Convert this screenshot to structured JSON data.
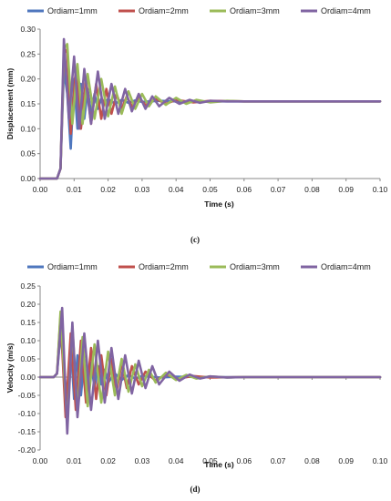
{
  "colors": {
    "s1": "#4f77be",
    "s2": "#c0504d",
    "s3": "#9bbb59",
    "s4": "#8064a2"
  },
  "chart_data": [
    {
      "type": "line",
      "caption": "(c)",
      "xlabel": "Time (s)",
      "ylabel": "Displacement (mm)",
      "xlim": [
        0,
        0.1
      ],
      "ylim": [
        0,
        0.3
      ],
      "xticks": [
        "0.00",
        "0.01",
        "0.02",
        "0.03",
        "0.04",
        "0.05",
        "0.06",
        "0.07",
        "0.08",
        "0.09",
        "0.10"
      ],
      "yticks": [
        "0.00",
        "0.05",
        "0.10",
        "0.15",
        "0.20",
        "0.25",
        "0.30"
      ],
      "grid": "none",
      "legend": "top",
      "series": [
        {
          "name": "Ordiam=1mm",
          "x": [
            0,
            0.004,
            0.005,
            0.006,
            0.007,
            0.008,
            0.009,
            0.01,
            0.011,
            0.012,
            0.013,
            0.014,
            0.015,
            0.016,
            0.017,
            0.018,
            0.019,
            0.02,
            0.022,
            0.024,
            0.026,
            0.028,
            0.03,
            0.035,
            0.04,
            0.05,
            0.06,
            0.07,
            0.1
          ],
          "y": [
            0,
            0,
            0,
            0.02,
            0.22,
            0.17,
            0.06,
            0.2,
            0.1,
            0.19,
            0.12,
            0.18,
            0.13,
            0.17,
            0.14,
            0.16,
            0.15,
            0.16,
            0.15,
            0.158,
            0.152,
            0.157,
            0.154,
            0.156,
            0.155,
            0.155,
            0.155,
            0.155,
            0.155
          ]
        },
        {
          "name": "Ordiam=2mm",
          "x": [
            0,
            0.004,
            0.005,
            0.006,
            0.007,
            0.008,
            0.009,
            0.0105,
            0.012,
            0.0135,
            0.015,
            0.0165,
            0.018,
            0.0195,
            0.021,
            0.0225,
            0.024,
            0.0255,
            0.027,
            0.029,
            0.031,
            0.034,
            0.037,
            0.04,
            0.045,
            0.05,
            0.06,
            0.07,
            0.1
          ],
          "y": [
            0,
            0,
            0,
            0.02,
            0.25,
            0.26,
            0.09,
            0.22,
            0.1,
            0.2,
            0.11,
            0.19,
            0.12,
            0.18,
            0.13,
            0.17,
            0.14,
            0.165,
            0.145,
            0.162,
            0.148,
            0.16,
            0.15,
            0.158,
            0.153,
            0.156,
            0.155,
            0.155,
            0.155
          ]
        },
        {
          "name": "Ordiam=3mm",
          "x": [
            0,
            0.004,
            0.005,
            0.006,
            0.007,
            0.008,
            0.0095,
            0.011,
            0.0125,
            0.014,
            0.016,
            0.018,
            0.02,
            0.022,
            0.024,
            0.026,
            0.028,
            0.03,
            0.032,
            0.034,
            0.037,
            0.04,
            0.043,
            0.046,
            0.05,
            0.055,
            0.06,
            0.07,
            0.1
          ],
          "y": [
            0,
            0,
            0,
            0.02,
            0.26,
            0.27,
            0.11,
            0.23,
            0.11,
            0.21,
            0.12,
            0.2,
            0.125,
            0.185,
            0.13,
            0.175,
            0.14,
            0.17,
            0.145,
            0.165,
            0.148,
            0.162,
            0.15,
            0.158,
            0.153,
            0.156,
            0.155,
            0.155,
            0.155
          ]
        },
        {
          "name": "Ordiam=4mm",
          "x": [
            0,
            0.004,
            0.005,
            0.006,
            0.007,
            0.0085,
            0.01,
            0.0115,
            0.013,
            0.015,
            0.017,
            0.019,
            0.021,
            0.023,
            0.025,
            0.027,
            0.029,
            0.031,
            0.033,
            0.035,
            0.038,
            0.041,
            0.044,
            0.047,
            0.05,
            0.055,
            0.06,
            0.07,
            0.1
          ],
          "y": [
            0,
            0,
            0,
            0.02,
            0.28,
            0.12,
            0.245,
            0.1,
            0.22,
            0.11,
            0.215,
            0.12,
            0.19,
            0.13,
            0.18,
            0.135,
            0.17,
            0.14,
            0.165,
            0.145,
            0.162,
            0.15,
            0.158,
            0.152,
            0.156,
            0.155,
            0.155,
            0.155,
            0.155
          ]
        }
      ]
    },
    {
      "type": "line",
      "caption": "(d)",
      "xlabel": "Time (s)",
      "ylabel": "Velocity (m/s)",
      "xlim": [
        0,
        0.1
      ],
      "ylim": [
        -0.2,
        0.25
      ],
      "xticks": [
        "0.00",
        "0.01",
        "0.02",
        "0.03",
        "0.04",
        "0.05",
        "0.06",
        "0.07",
        "0.08",
        "0.09",
        "0.10"
      ],
      "yticks": [
        "-0.20",
        "-0.15",
        "-0.10",
        "-0.05",
        "0.00",
        "0.05",
        "0.10",
        "0.15",
        "0.20",
        "0.25"
      ],
      "grid": "none",
      "legend": "top",
      "series": [
        {
          "name": "Ordiam=1mm",
          "x": [
            0,
            0.004,
            0.005,
            0.006,
            0.007,
            0.008,
            0.009,
            0.01,
            0.011,
            0.012,
            0.013,
            0.014,
            0.015,
            0.016,
            0.017,
            0.018,
            0.019,
            0.02,
            0.022,
            0.024,
            0.026,
            0.028,
            0.03,
            0.035,
            0.04,
            0.05,
            0.1
          ],
          "y": [
            0,
            0,
            0.01,
            0.12,
            0.03,
            -0.08,
            0.09,
            -0.06,
            0.06,
            -0.05,
            0.05,
            -0.04,
            0.04,
            -0.03,
            0.03,
            -0.02,
            0.02,
            -0.015,
            0.01,
            -0.008,
            0.006,
            -0.004,
            0.003,
            -0.001,
            0.001,
            0,
            0
          ]
        },
        {
          "name": "Ordiam=2mm",
          "x": [
            0,
            0.004,
            0.005,
            0.006,
            0.0075,
            0.009,
            0.0105,
            0.012,
            0.0135,
            0.015,
            0.0165,
            0.018,
            0.0195,
            0.021,
            0.0225,
            0.024,
            0.0255,
            0.027,
            0.029,
            0.031,
            0.034,
            0.037,
            0.04,
            0.045,
            0.05,
            0.06,
            0.1
          ],
          "y": [
            0,
            0,
            0.01,
            0.17,
            -0.11,
            0.12,
            -0.09,
            0.1,
            -0.07,
            0.08,
            -0.06,
            0.06,
            -0.05,
            0.05,
            -0.04,
            0.04,
            -0.03,
            0.03,
            -0.02,
            0.015,
            -0.01,
            0.008,
            -0.005,
            0.003,
            -0.001,
            0,
            0
          ]
        },
        {
          "name": "Ordiam=3mm",
          "x": [
            0,
            0.004,
            0.005,
            0.006,
            0.008,
            0.0095,
            0.011,
            0.0125,
            0.014,
            0.016,
            0.018,
            0.02,
            0.022,
            0.024,
            0.026,
            0.028,
            0.03,
            0.032,
            0.034,
            0.037,
            0.04,
            0.043,
            0.046,
            0.05,
            0.055,
            0.06,
            0.1
          ],
          "y": [
            0,
            0,
            0.01,
            0.18,
            -0.13,
            0.14,
            -0.1,
            0.11,
            -0.08,
            0.09,
            -0.07,
            0.07,
            -0.05,
            0.05,
            -0.04,
            0.035,
            -0.025,
            0.02,
            -0.015,
            0.012,
            -0.008,
            0.006,
            -0.004,
            0.002,
            -0.001,
            0,
            0
          ]
        },
        {
          "name": "Ordiam=4mm",
          "x": [
            0,
            0.004,
            0.005,
            0.0065,
            0.008,
            0.0095,
            0.011,
            0.013,
            0.015,
            0.017,
            0.019,
            0.021,
            0.023,
            0.025,
            0.027,
            0.029,
            0.031,
            0.033,
            0.035,
            0.038,
            0.041,
            0.044,
            0.047,
            0.05,
            0.055,
            0.06,
            0.1
          ],
          "y": [
            0,
            0,
            0.01,
            0.19,
            -0.155,
            0.15,
            -0.11,
            0.12,
            -0.09,
            0.1,
            -0.07,
            0.08,
            -0.06,
            0.06,
            -0.045,
            0.045,
            -0.03,
            0.03,
            -0.02,
            0.015,
            -0.01,
            0.007,
            -0.004,
            0.002,
            -0.001,
            0,
            0
          ]
        }
      ]
    }
  ]
}
